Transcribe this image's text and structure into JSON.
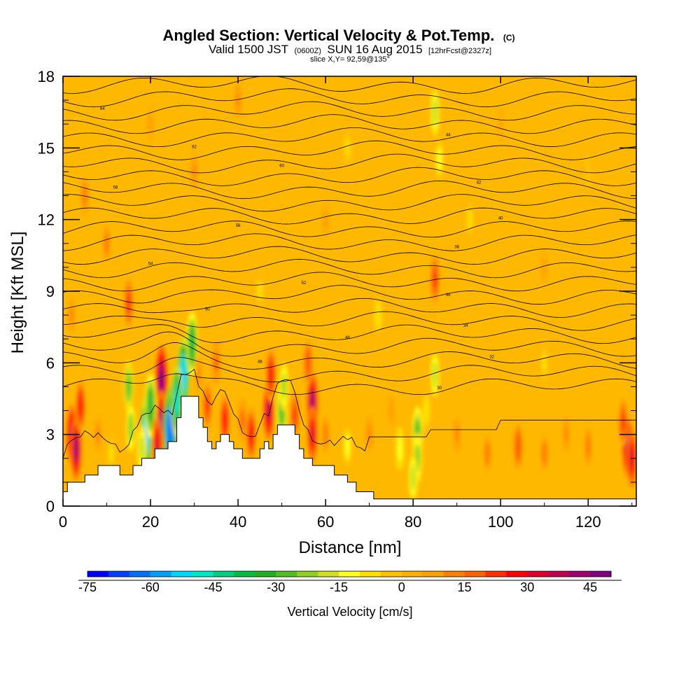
{
  "chart_data": {
    "type": "heatmap",
    "title": {
      "main": "Angled Section: Vertical Velocity & Pot.Temp.",
      "unit": "(C)",
      "valid_prefix": "Valid 1500 JST",
      "valid_zulu": "(0600Z)",
      "valid_date": "SUN 16 Aug 2015",
      "forecast": "[12hrFcst@2327z]",
      "slice": "slice X,Y= 92,59@135°"
    },
    "xlabel": "Distance [nm]",
    "ylabel": "Height [Kft MSL]",
    "xlim": [
      0,
      131
    ],
    "ylim": [
      0,
      18
    ],
    "x_ticks": [
      "0",
      "20",
      "40",
      "60",
      "80",
      "100",
      "120"
    ],
    "y_ticks": [
      "0",
      "3",
      "6",
      "9",
      "12",
      "15",
      "18"
    ],
    "colorbar": {
      "title": "Vertical Velocity [cm/s]",
      "tick_labels": [
        "-75",
        "-60",
        "-45",
        "-30",
        "-15",
        "0",
        "15",
        "30",
        "45"
      ],
      "range": [
        -75,
        50
      ],
      "step": 5,
      "colors": [
        "#0000ff",
        "#0040ff",
        "#0070ff",
        "#00a0ff",
        "#00d8ff",
        "#00e8c8",
        "#00d080",
        "#00c040",
        "#20b020",
        "#50c020",
        "#90d020",
        "#d0e020",
        "#ffff20",
        "#ffe000",
        "#ffc000",
        "#ffb000",
        "#ffa000",
        "#ff8000",
        "#ff6000",
        "#ff3000",
        "#ff0000",
        "#e00030",
        "#c00050",
        "#a00070",
        "#800080"
      ]
    },
    "terrain": [
      [
        0,
        0.6
      ],
      [
        1,
        0.6
      ],
      [
        1,
        1.0
      ],
      [
        5,
        1.0
      ],
      [
        5,
        1.3
      ],
      [
        8,
        1.3
      ],
      [
        8,
        1.7
      ],
      [
        13,
        1.7
      ],
      [
        13,
        1.3
      ],
      [
        16,
        1.3
      ],
      [
        16,
        1.7
      ],
      [
        18,
        1.7
      ],
      [
        18,
        2.0
      ],
      [
        21,
        2.0
      ],
      [
        21,
        2.4
      ],
      [
        24,
        2.4
      ],
      [
        24,
        2.7
      ],
      [
        26,
        2.7
      ],
      [
        26,
        3.7
      ],
      [
        27,
        3.7
      ],
      [
        27,
        4.6
      ],
      [
        31,
        4.6
      ],
      [
        31,
        3.7
      ],
      [
        32,
        3.7
      ],
      [
        32,
        3.3
      ],
      [
        33,
        3.3
      ],
      [
        33,
        2.7
      ],
      [
        34,
        2.7
      ],
      [
        34,
        2.4
      ],
      [
        35,
        2.4
      ],
      [
        35,
        2.7
      ],
      [
        36,
        2.7
      ],
      [
        36,
        3.0
      ],
      [
        38,
        3.0
      ],
      [
        38,
        2.7
      ],
      [
        39,
        2.7
      ],
      [
        39,
        2.4
      ],
      [
        41,
        2.4
      ],
      [
        41,
        2.0
      ],
      [
        45,
        2.0
      ],
      [
        45,
        2.4
      ],
      [
        46,
        2.4
      ],
      [
        46,
        2.7
      ],
      [
        47,
        2.7
      ],
      [
        47,
        2.4
      ],
      [
        48,
        2.4
      ],
      [
        48,
        3.0
      ],
      [
        49,
        3.0
      ],
      [
        49,
        3.4
      ],
      [
        53,
        3.4
      ],
      [
        53,
        3.0
      ],
      [
        54,
        3.0
      ],
      [
        54,
        2.4
      ],
      [
        55,
        2.4
      ],
      [
        55,
        2.0
      ],
      [
        57,
        2.0
      ],
      [
        57,
        1.7
      ],
      [
        62,
        1.7
      ],
      [
        62,
        1.3
      ],
      [
        65,
        1.3
      ],
      [
        65,
        1.0
      ],
      [
        67,
        1.0
      ],
      [
        67,
        0.6
      ],
      [
        71,
        0.6
      ],
      [
        71,
        0.3
      ],
      [
        131,
        0.3
      ]
    ],
    "contour_labels": [
      "64",
      "62",
      "60",
      "58",
      "56",
      "54",
      "52",
      "50",
      "48",
      "46",
      "44",
      "42",
      "40",
      "38",
      "36",
      "34",
      "32",
      "30"
    ],
    "wind_field": [
      {
        "x": 2,
        "y": 3,
        "w": 35
      },
      {
        "x": 3,
        "y": 2.4,
        "w": 40
      },
      {
        "x": 4,
        "y": 4.2,
        "w": 25
      },
      {
        "x": 8,
        "y": 3,
        "w": 10
      },
      {
        "x": 11,
        "y": 2.2,
        "w": -8
      },
      {
        "x": 15,
        "y": 5,
        "w": -28
      },
      {
        "x": 15.5,
        "y": 3.3,
        "w": -25
      },
      {
        "x": 15,
        "y": 8.5,
        "w": 22
      },
      {
        "x": 19,
        "y": 3,
        "w": -55
      },
      {
        "x": 20,
        "y": 4.2,
        "w": -40
      },
      {
        "x": 18,
        "y": 2.4,
        "w": -20
      },
      {
        "x": 22.5,
        "y": 5.3,
        "w": 45
      },
      {
        "x": 22.5,
        "y": 3.5,
        "w": 40
      },
      {
        "x": 21.5,
        "y": 2.6,
        "w": 30
      },
      {
        "x": 24.5,
        "y": 3.2,
        "w": -65
      },
      {
        "x": 27.5,
        "y": 5.5,
        "w": -55
      },
      {
        "x": 29.5,
        "y": 6.8,
        "w": -40
      },
      {
        "x": 26,
        "y": 4.4,
        "w": -50
      },
      {
        "x": 31,
        "y": 5.5,
        "w": 10
      },
      {
        "x": 33,
        "y": 4.2,
        "w": 20
      },
      {
        "x": 37,
        "y": 3.6,
        "w": 25
      },
      {
        "x": 35,
        "y": 6,
        "w": 15
      },
      {
        "x": 43,
        "y": 3.0,
        "w": 28
      },
      {
        "x": 41,
        "y": 3.6,
        "w": 15
      },
      {
        "x": 47,
        "y": 4,
        "w": 35
      },
      {
        "x": 47.5,
        "y": 5.5,
        "w": 28
      },
      {
        "x": 50,
        "y": 4,
        "w": -30
      },
      {
        "x": 50.5,
        "y": 5,
        "w": -22
      },
      {
        "x": 53,
        "y": 3.8,
        "w": 22
      },
      {
        "x": 57,
        "y": 4.3,
        "w": 40
      },
      {
        "x": 57,
        "y": 3,
        "w": 30
      },
      {
        "x": 56,
        "y": 6,
        "w": 18
      },
      {
        "x": 60,
        "y": 3,
        "w": 12
      },
      {
        "x": 65,
        "y": 2.5,
        "w": -12
      },
      {
        "x": 70,
        "y": 3,
        "w": 10
      },
      {
        "x": 75,
        "y": 4,
        "w": 8
      },
      {
        "x": 77,
        "y": 2.4,
        "w": -15
      },
      {
        "x": 81,
        "y": 3.0,
        "w": -30
      },
      {
        "x": 81,
        "y": 2.0,
        "w": -25
      },
      {
        "x": 80,
        "y": 1.2,
        "w": -20
      },
      {
        "x": 83,
        "y": 4,
        "w": -10
      },
      {
        "x": 85,
        "y": 5.5,
        "w": -18
      },
      {
        "x": 85,
        "y": 9.5,
        "w": 22
      },
      {
        "x": 85,
        "y": 16.5,
        "w": -20
      },
      {
        "x": 86,
        "y": 14.5,
        "w": -14
      },
      {
        "x": 90,
        "y": 3,
        "w": 10
      },
      {
        "x": 97,
        "y": 2.2,
        "w": 12
      },
      {
        "x": 104,
        "y": 2.5,
        "w": 18
      },
      {
        "x": 110,
        "y": 2.2,
        "w": 12
      },
      {
        "x": 115,
        "y": 3,
        "w": 10
      },
      {
        "x": 120,
        "y": 2.5,
        "w": 14
      },
      {
        "x": 129,
        "y": 2.5,
        "w": 35
      },
      {
        "x": 130,
        "y": 2.0,
        "w": 32
      },
      {
        "x": 128,
        "y": 3.5,
        "w": 20
      },
      {
        "x": 10,
        "y": 11,
        "w": 12
      },
      {
        "x": 5,
        "y": 13,
        "w": 14
      },
      {
        "x": 30,
        "y": 14,
        "w": 10
      },
      {
        "x": 60,
        "y": 12,
        "w": 8
      },
      {
        "x": 110,
        "y": 10,
        "w": 6
      },
      {
        "x": 100,
        "y": 16,
        "w": 5
      },
      {
        "x": 40,
        "y": 17,
        "w": 10
      },
      {
        "x": 20,
        "y": 16,
        "w": 8
      },
      {
        "x": 72,
        "y": 8,
        "w": -10
      },
      {
        "x": 93,
        "y": 12,
        "w": -8
      },
      {
        "x": 120,
        "y": 14,
        "w": -5
      },
      {
        "x": 65,
        "y": 15,
        "w": -8
      },
      {
        "x": 45,
        "y": 9,
        "w": -6
      },
      {
        "x": 110,
        "y": 6,
        "w": -8
      },
      {
        "x": 2,
        "y": 8,
        "w": 10
      }
    ]
  }
}
